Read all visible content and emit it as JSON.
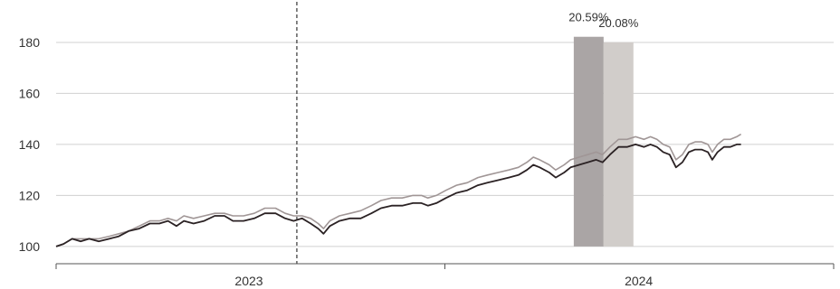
{
  "chart_data": {
    "type": "line",
    "grid": true,
    "ylim": [
      95,
      186
    ],
    "y_ticks": [
      100,
      120,
      140,
      160,
      180
    ],
    "x_range": [
      "2023-01-01",
      "2024-12-31"
    ],
    "x_ticks": [
      "2024-01-01"
    ],
    "year_labels": [
      {
        "label": "2023",
        "center": "2023-07-01"
      },
      {
        "label": "2024",
        "center": "2024-07-01"
      }
    ],
    "reference_line_date": "2023-08-15",
    "colors": {
      "series_dark": "#2b2224",
      "series_light": "#a09696",
      "bar_dark": "#aaa5a5",
      "bar_light": "#d1cdca",
      "grid": "#d0d0d0",
      "axis": "#555555"
    },
    "bars": [
      {
        "label": "20.59%",
        "value": 182.2,
        "start": "2024-05-01",
        "end": "2024-05-29",
        "color_key": "bar_dark"
      },
      {
        "label": "20.08%",
        "value": 180.0,
        "start": "2024-05-29",
        "end": "2024-06-26",
        "color_key": "bar_light"
      }
    ],
    "series": [
      {
        "color_key": "series_dark",
        "points": [
          [
            "2023-01-01",
            100
          ],
          [
            "2023-01-08",
            101
          ],
          [
            "2023-01-16",
            103
          ],
          [
            "2023-01-24",
            102
          ],
          [
            "2023-02-01",
            103
          ],
          [
            "2023-02-10",
            102
          ],
          [
            "2023-02-20",
            103
          ],
          [
            "2023-03-01",
            104
          ],
          [
            "2023-03-10",
            106
          ],
          [
            "2023-03-20",
            107
          ],
          [
            "2023-03-30",
            109
          ],
          [
            "2023-04-08",
            109
          ],
          [
            "2023-04-16",
            110
          ],
          [
            "2023-04-24",
            108
          ],
          [
            "2023-05-01",
            110
          ],
          [
            "2023-05-10",
            109
          ],
          [
            "2023-05-20",
            110
          ],
          [
            "2023-05-30",
            112
          ],
          [
            "2023-06-08",
            112
          ],
          [
            "2023-06-16",
            110
          ],
          [
            "2023-06-26",
            110
          ],
          [
            "2023-07-06",
            111
          ],
          [
            "2023-07-16",
            113
          ],
          [
            "2023-07-26",
            113
          ],
          [
            "2023-08-04",
            111
          ],
          [
            "2023-08-12",
            110
          ],
          [
            "2023-08-20",
            111
          ],
          [
            "2023-08-28",
            109
          ],
          [
            "2023-09-04",
            107
          ],
          [
            "2023-09-09",
            105
          ],
          [
            "2023-09-15",
            108
          ],
          [
            "2023-09-24",
            110
          ],
          [
            "2023-10-04",
            111
          ],
          [
            "2023-10-14",
            111
          ],
          [
            "2023-10-24",
            113
          ],
          [
            "2023-11-02",
            115
          ],
          [
            "2023-11-12",
            116
          ],
          [
            "2023-11-22",
            116
          ],
          [
            "2023-12-02",
            117
          ],
          [
            "2023-12-10",
            117
          ],
          [
            "2023-12-16",
            116
          ],
          [
            "2023-12-24",
            117
          ],
          [
            "2024-01-02",
            119
          ],
          [
            "2024-01-12",
            121
          ],
          [
            "2024-01-22",
            122
          ],
          [
            "2024-02-01",
            124
          ],
          [
            "2024-02-10",
            125
          ],
          [
            "2024-02-20",
            126
          ],
          [
            "2024-03-01",
            127
          ],
          [
            "2024-03-10",
            128
          ],
          [
            "2024-03-18",
            130
          ],
          [
            "2024-03-24",
            132
          ],
          [
            "2024-03-30",
            131
          ],
          [
            "2024-04-08",
            129
          ],
          [
            "2024-04-14",
            127
          ],
          [
            "2024-04-22",
            129
          ],
          [
            "2024-04-28",
            131
          ],
          [
            "2024-05-06",
            132
          ],
          [
            "2024-05-14",
            133
          ],
          [
            "2024-05-22",
            134
          ],
          [
            "2024-05-28",
            133
          ],
          [
            "2024-06-04",
            136
          ],
          [
            "2024-06-12",
            139
          ],
          [
            "2024-06-20",
            139
          ],
          [
            "2024-06-28",
            140
          ],
          [
            "2024-07-06",
            139
          ],
          [
            "2024-07-12",
            140
          ],
          [
            "2024-07-18",
            139
          ],
          [
            "2024-07-24",
            137
          ],
          [
            "2024-07-30",
            136
          ],
          [
            "2024-08-05",
            131
          ],
          [
            "2024-08-11",
            133
          ],
          [
            "2024-08-17",
            137
          ],
          [
            "2024-08-23",
            138
          ],
          [
            "2024-08-29",
            138
          ],
          [
            "2024-09-04",
            137
          ],
          [
            "2024-09-08",
            134
          ],
          [
            "2024-09-13",
            137
          ],
          [
            "2024-09-19",
            139
          ],
          [
            "2024-09-25",
            139
          ],
          [
            "2024-10-01",
            140
          ],
          [
            "2024-10-05",
            140
          ]
        ]
      },
      {
        "color_key": "series_light",
        "points": [
          [
            "2023-01-01",
            100
          ],
          [
            "2023-01-08",
            101
          ],
          [
            "2023-01-16",
            103
          ],
          [
            "2023-01-24",
            103
          ],
          [
            "2023-02-01",
            103
          ],
          [
            "2023-02-10",
            103
          ],
          [
            "2023-02-20",
            104
          ],
          [
            "2023-03-01",
            105
          ],
          [
            "2023-03-10",
            106
          ],
          [
            "2023-03-20",
            108
          ],
          [
            "2023-03-30",
            110
          ],
          [
            "2023-04-08",
            110
          ],
          [
            "2023-04-16",
            111
          ],
          [
            "2023-04-24",
            110
          ],
          [
            "2023-05-01",
            112
          ],
          [
            "2023-05-10",
            111
          ],
          [
            "2023-05-20",
            112
          ],
          [
            "2023-05-30",
            113
          ],
          [
            "2023-06-08",
            113
          ],
          [
            "2023-06-16",
            112
          ],
          [
            "2023-06-26",
            112
          ],
          [
            "2023-07-06",
            113
          ],
          [
            "2023-07-16",
            115
          ],
          [
            "2023-07-26",
            115
          ],
          [
            "2023-08-04",
            113
          ],
          [
            "2023-08-12",
            112
          ],
          [
            "2023-08-20",
            112
          ],
          [
            "2023-08-28",
            111
          ],
          [
            "2023-09-04",
            109
          ],
          [
            "2023-09-09",
            107
          ],
          [
            "2023-09-15",
            110
          ],
          [
            "2023-09-24",
            112
          ],
          [
            "2023-10-04",
            113
          ],
          [
            "2023-10-14",
            114
          ],
          [
            "2023-10-24",
            116
          ],
          [
            "2023-11-02",
            118
          ],
          [
            "2023-11-12",
            119
          ],
          [
            "2023-11-22",
            119
          ],
          [
            "2023-12-02",
            120
          ],
          [
            "2023-12-10",
            120
          ],
          [
            "2023-12-16",
            119
          ],
          [
            "2023-12-24",
            120
          ],
          [
            "2024-01-02",
            122
          ],
          [
            "2024-01-12",
            124
          ],
          [
            "2024-01-22",
            125
          ],
          [
            "2024-02-01",
            127
          ],
          [
            "2024-02-10",
            128
          ],
          [
            "2024-02-20",
            129
          ],
          [
            "2024-03-01",
            130
          ],
          [
            "2024-03-10",
            131
          ],
          [
            "2024-03-18",
            133
          ],
          [
            "2024-03-24",
            135
          ],
          [
            "2024-03-30",
            134
          ],
          [
            "2024-04-08",
            132
          ],
          [
            "2024-04-14",
            130
          ],
          [
            "2024-04-22",
            132
          ],
          [
            "2024-04-28",
            134
          ],
          [
            "2024-05-06",
            135
          ],
          [
            "2024-05-14",
            136
          ],
          [
            "2024-05-22",
            137
          ],
          [
            "2024-05-28",
            136
          ],
          [
            "2024-06-04",
            139
          ],
          [
            "2024-06-12",
            142
          ],
          [
            "2024-06-20",
            142
          ],
          [
            "2024-06-28",
            143
          ],
          [
            "2024-07-06",
            142
          ],
          [
            "2024-07-12",
            143
          ],
          [
            "2024-07-18",
            142
          ],
          [
            "2024-07-24",
            140
          ],
          [
            "2024-07-30",
            139
          ],
          [
            "2024-08-05",
            134
          ],
          [
            "2024-08-11",
            136
          ],
          [
            "2024-08-17",
            140
          ],
          [
            "2024-08-23",
            141
          ],
          [
            "2024-08-29",
            141
          ],
          [
            "2024-09-04",
            140
          ],
          [
            "2024-09-08",
            137
          ],
          [
            "2024-09-13",
            140
          ],
          [
            "2024-09-19",
            142
          ],
          [
            "2024-09-25",
            142
          ],
          [
            "2024-10-01",
            143
          ],
          [
            "2024-10-05",
            144
          ]
        ]
      }
    ]
  }
}
